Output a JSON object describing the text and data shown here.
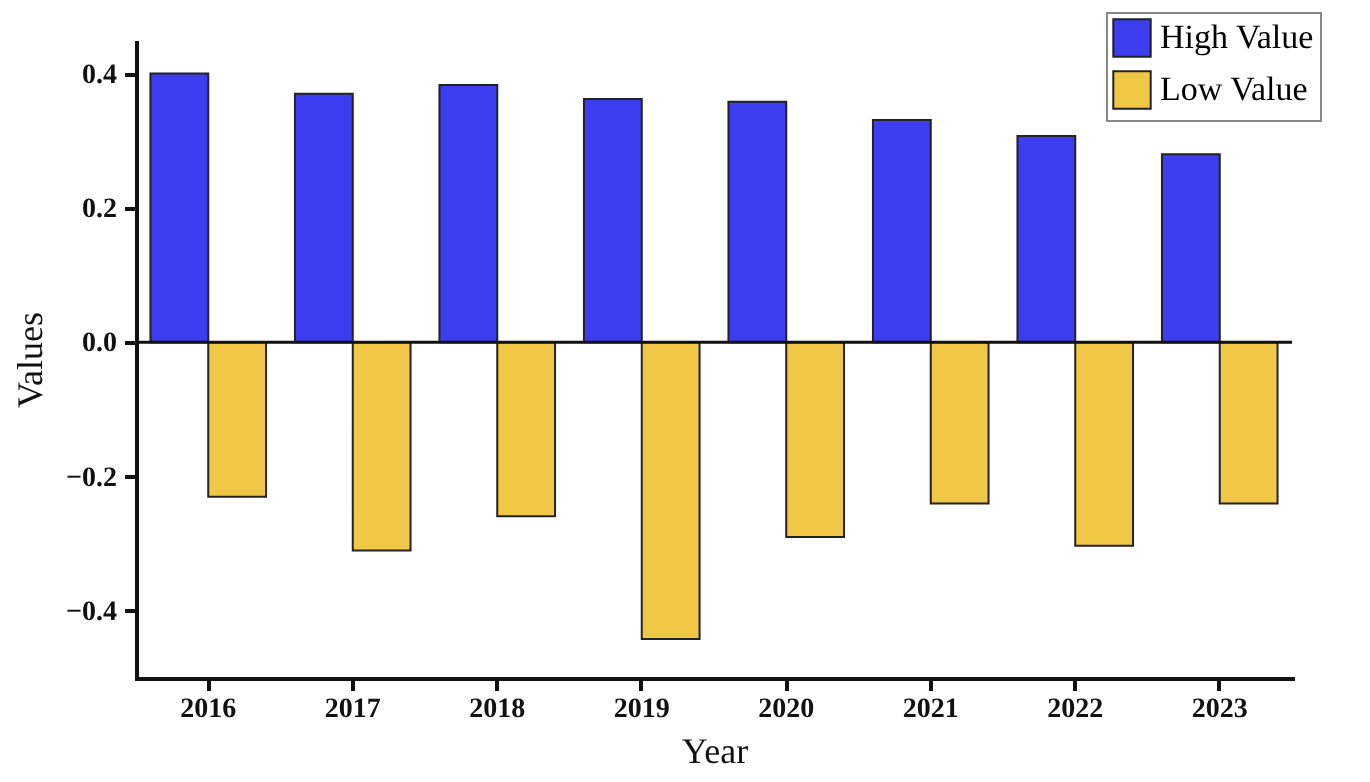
{
  "chart_data": {
    "type": "bar",
    "xlabel": "Year",
    "ylabel": "Values",
    "categories": [
      "2016",
      "2017",
      "2018",
      "2019",
      "2020",
      "2021",
      "2022",
      "2023"
    ],
    "series": [
      {
        "name": "High Value",
        "color": "#3c3cf0",
        "values": [
          0.4,
          0.37,
          0.383,
          0.362,
          0.358,
          0.331,
          0.307,
          0.28
        ]
      },
      {
        "name": "Low Value",
        "color": "#f0c845",
        "values": [
          -0.23,
          -0.31,
          -0.259,
          -0.442,
          -0.29,
          -0.24,
          -0.303,
          -0.24
        ]
      }
    ],
    "ylim": [
      -0.5,
      0.45
    ],
    "yticks": [
      {
        "value": -0.4,
        "label": "−0.4"
      },
      {
        "value": -0.2,
        "label": "−0.2"
      },
      {
        "value": 0,
        "label": "0.0"
      },
      {
        "value": 0.2,
        "label": "0.2"
      },
      {
        "value": 0.4,
        "label": "0.4"
      }
    ],
    "ref_lines": [
      {
        "axis": "y",
        "value": 0
      }
    ],
    "legend": "top right",
    "grid": false
  }
}
